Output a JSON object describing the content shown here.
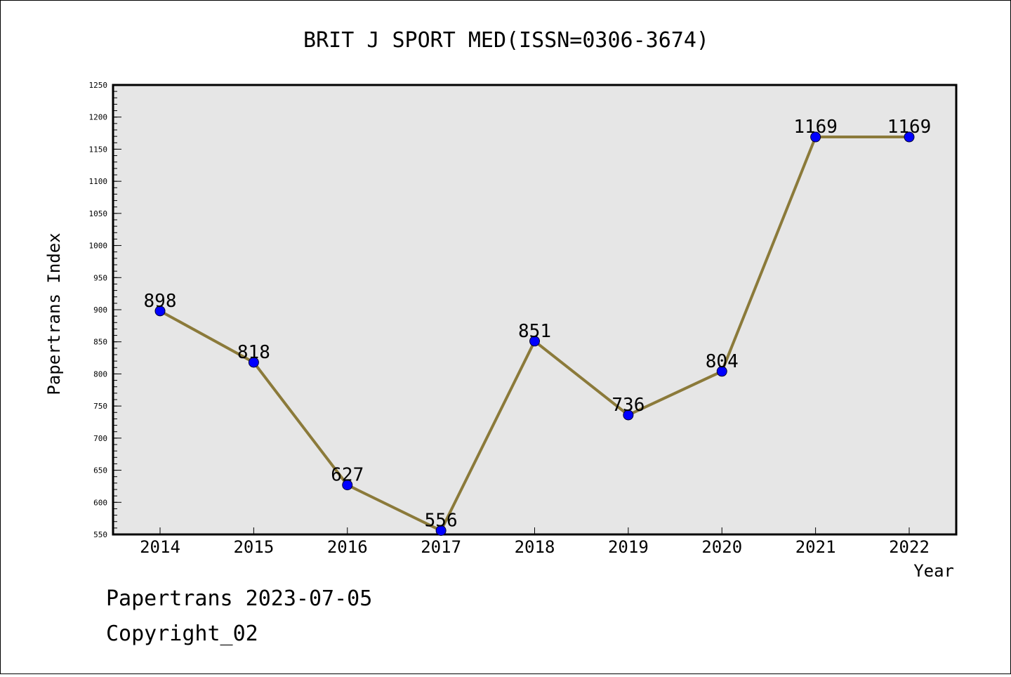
{
  "chart_data": {
    "type": "line",
    "title": "BRIT J SPORT MED(ISSN=0306-3674)",
    "xlabel": "Year",
    "ylabel": "Papertrans Index",
    "categories": [
      "2014",
      "2015",
      "2016",
      "2017",
      "2018",
      "2019",
      "2020",
      "2021",
      "2022"
    ],
    "values": [
      898,
      818,
      627,
      556,
      851,
      736,
      804,
      1169,
      1169
    ],
    "data_labels": [
      "898",
      "818",
      "627",
      "556",
      "851",
      "736",
      "804",
      "1169",
      "1169"
    ],
    "ylim": [
      550,
      1250
    ],
    "yticks": [
      "550",
      "600",
      "650",
      "700",
      "750",
      "800",
      "850",
      "900",
      "950",
      "1000",
      "1050",
      "1100",
      "1150",
      "1200",
      "1250"
    ],
    "grid": false,
    "legend": "none",
    "colors": {
      "line": "#8b7a3a",
      "marker": "#0000ff",
      "plot_background": "#e6e6e6"
    }
  },
  "footer": {
    "stamp": "Papertrans 2023-07-05",
    "copyright": "Copyright_02"
  }
}
